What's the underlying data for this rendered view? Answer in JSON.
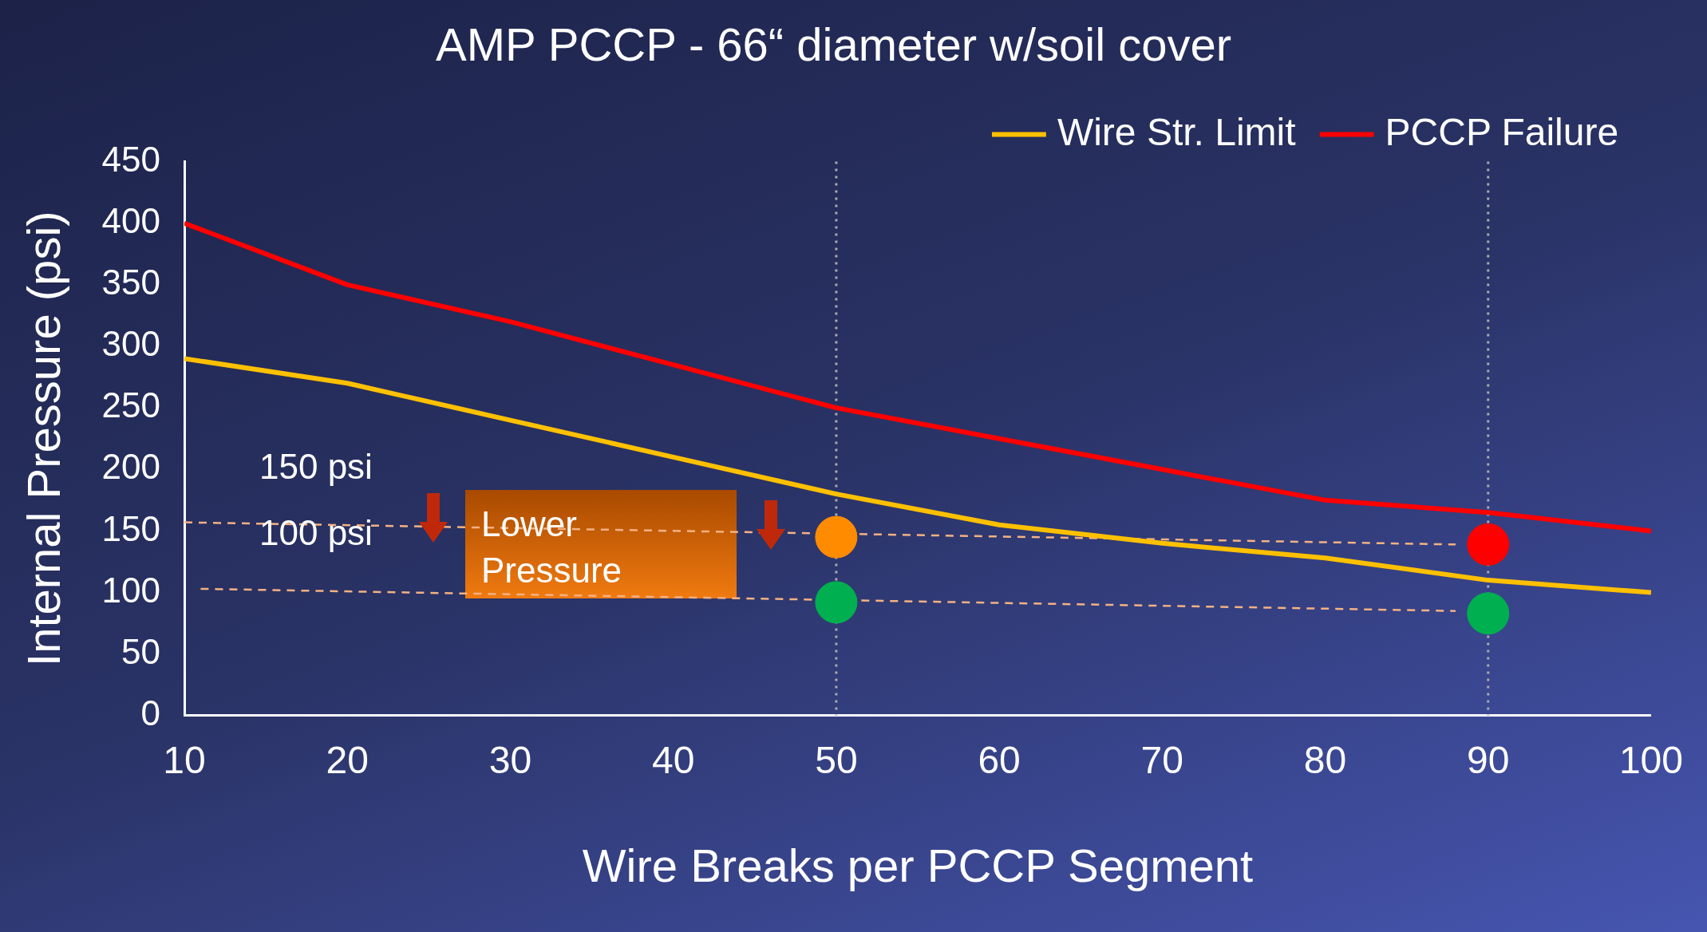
{
  "chart_data": {
    "type": "line",
    "title": "AMP PCCP - 66“ diameter w/soil cover",
    "xlabel": "Wire Breaks per PCCP Segment",
    "ylabel": "Internal Pressure (psi)",
    "x": [
      10,
      20,
      30,
      40,
      50,
      60,
      70,
      80,
      90,
      100
    ],
    "xlim": [
      10,
      100
    ],
    "xticks": [
      10,
      20,
      30,
      40,
      50,
      60,
      70,
      80,
      90,
      100
    ],
    "ylim": [
      0,
      450
    ],
    "yticks": [
      0,
      50,
      100,
      150,
      200,
      250,
      300,
      350,
      400,
      450
    ],
    "grid": false,
    "legend": "top right",
    "marker": "none",
    "series": [
      {
        "name": "Wire Str. Limit",
        "color": "#ffc000",
        "values": [
          290,
          270,
          240,
          210,
          180,
          155,
          140,
          128,
          110,
          100
        ]
      },
      {
        "name": "PCCP Failure",
        "color": "#ff0000",
        "values": [
          400,
          350,
          320,
          285,
          250,
          225,
          200,
          175,
          165,
          150
        ]
      },
      {
        "type": "line",
        "color": "#f4b183",
        "line_style": "dashed",
        "x": [
          10,
          88
        ],
        "values": [
          157,
          139
        ]
      },
      {
        "type": "line",
        "color": "#f4b183",
        "line_style": "dashed",
        "x": [
          11,
          88
        ],
        "values": [
          103,
          85
        ]
      },
      {
        "type": "scatter",
        "marker": "circle",
        "x": [
          50,
          50,
          90,
          90
        ],
        "values": [
          145,
          92,
          139,
          83
        ],
        "colors": [
          "#ff8c00",
          "#00b050",
          "#ff0000",
          "#00b050"
        ]
      }
    ],
    "ref_lines": [
      {
        "axis": "x",
        "value": 50,
        "color": "#aaaaaa",
        "line_style": "dotted"
      },
      {
        "axis": "x",
        "value": 90,
        "color": "#aaaaaa",
        "line_style": "dotted"
      }
    ],
    "annotations": [
      "150 psi",
      "100 psi",
      "Lower Pressure"
    ]
  }
}
